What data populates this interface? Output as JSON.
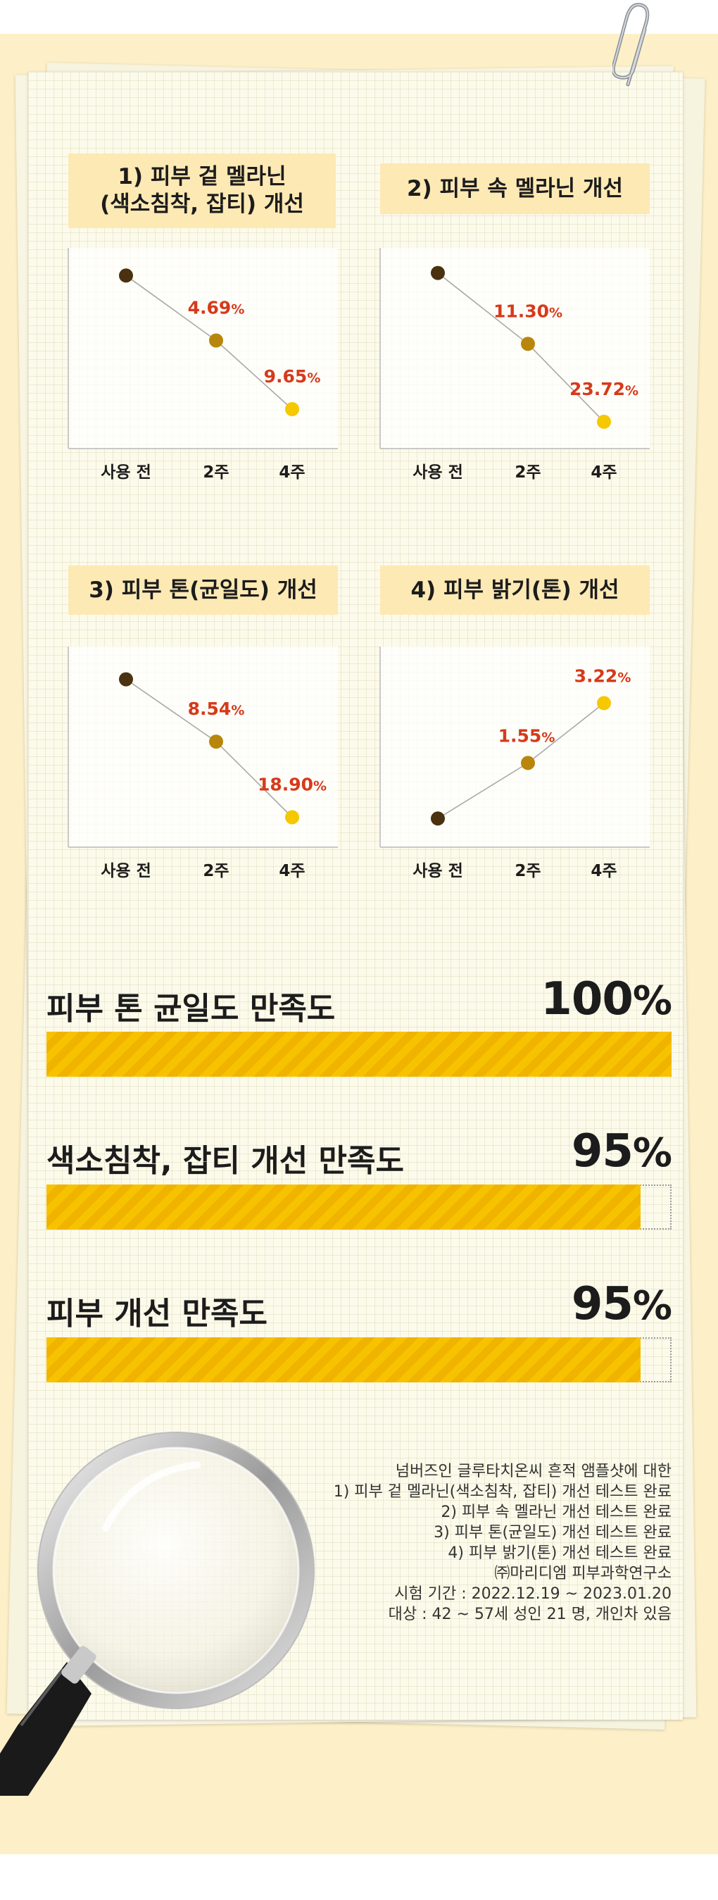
{
  "charts": [
    {
      "title_lines": [
        "1) 피부 겉 멜라닌",
        "(색소침착, 잡티) 개선"
      ],
      "labels": [
        {
          "num": "4.69",
          "sign": "%"
        },
        {
          "num": "9.65",
          "sign": "%"
        }
      ]
    },
    {
      "title_lines": [
        "2) 피부 속 멜라닌 개선"
      ],
      "labels": [
        {
          "num": "11.30",
          "sign": "%"
        },
        {
          "num": "23.72",
          "sign": "%"
        }
      ]
    },
    {
      "title_lines": [
        "3) 피부 톤(균일도) 개선"
      ],
      "labels": [
        {
          "num": "8.54",
          "sign": "%"
        },
        {
          "num": "18.90",
          "sign": "%"
        }
      ]
    },
    {
      "title_lines": [
        "4) 피부 밝기(톤) 개선"
      ],
      "labels": [
        {
          "num": "1.55",
          "sign": "%"
        },
        {
          "num": "3.22",
          "sign": "%"
        }
      ]
    }
  ],
  "chart_data": [
    {
      "type": "line",
      "title": "1) 피부 겉 멜라닌 (색소침착, 잡티) 개선",
      "categories": [
        "사용 전",
        "2주",
        "4주"
      ],
      "series": [
        {
          "values": [
            0,
            -4.69,
            -9.65
          ]
        }
      ],
      "data_labels": [
        "",
        "4.69%",
        "9.65%"
      ],
      "ylim": [
        -12.5,
        2
      ],
      "grid": false
    },
    {
      "type": "line",
      "title": "2) 피부 속 멜라닌 개선",
      "categories": [
        "사용 전",
        "2주",
        "4주"
      ],
      "series": [
        {
          "values": [
            0,
            -11.3,
            -23.72
          ]
        }
      ],
      "data_labels": [
        "",
        "11.30%",
        "23.72%"
      ],
      "ylim": [
        -28,
        4
      ],
      "grid": false
    },
    {
      "type": "line",
      "title": "3) 피부 톤(균일도) 개선",
      "categories": [
        "사용 전",
        "2주",
        "4주"
      ],
      "series": [
        {
          "values": [
            0,
            -8.54,
            -18.9
          ]
        }
      ],
      "data_labels": [
        "",
        "8.54%",
        "18.90%"
      ],
      "ylim": [
        -23,
        4.5
      ],
      "grid": false
    },
    {
      "type": "line",
      "title": "4) 피부 밝기(톤) 개선",
      "categories": [
        "사용 전",
        "2주",
        "4주"
      ],
      "series": [
        {
          "values": [
            0,
            1.55,
            3.22
          ]
        }
      ],
      "data_labels": [
        "",
        "1.55%",
        "3.22%"
      ],
      "ylim": [
        -0.8,
        4.8
      ],
      "grid": false
    }
  ],
  "satisfaction": [
    {
      "label": "피부 톤 균일도 만족도",
      "value_num": "100",
      "value_sign": "%",
      "fraction": 1.0
    },
    {
      "label": "색소침착, 잡티 개선 만족도",
      "value_num": "95",
      "value_sign": "%",
      "fraction": 0.95
    },
    {
      "label": "피부 개선 만족도",
      "value_num": "95",
      "value_sign": "%",
      "fraction": 0.95
    }
  ],
  "footnote": [
    "넘버즈인 글루타치온씨 흔적 앰플샷에 대한",
    "1) 피부 겉 멜라닌(색소침착, 잡티) 개선 테스트 완료",
    "2) 피부 속 멜라닌 개선 테스트 완료",
    "3) 피부 톤(균일도) 개선 테스트 완료",
    "4) 피부 밝기(톤) 개선 테스트 완료",
    "㈜마리디엠 피부과학연구소",
    "시험 기간 : 2022.12.19 ~ 2023.01.20",
    "대상 : 42 ~ 57세 성인 21 명, 개인차 있음"
  ],
  "colors": {
    "point_before": "#4a3210",
    "point_week2": "#b8860b",
    "point_week4": "#f5c800",
    "label_red": "#d63a1a",
    "bar_yellow": "#f7c200",
    "title_bg": "#fde9b4"
  },
  "icons": [
    "paperclip-icon",
    "magnifier-icon"
  ]
}
